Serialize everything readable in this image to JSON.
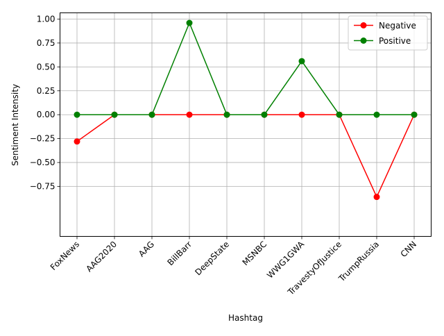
{
  "chart_data": {
    "type": "line",
    "xlabel": "Hashtag",
    "ylabel": "Sentiment Intensity",
    "categories": [
      "FoxNews",
      "AAG2020",
      "AAG",
      "BillBarr",
      "DeepState",
      "MSNBC",
      "WWG1GWA",
      "TravestyOfJustice",
      "TrumpRussia",
      "CNN"
    ],
    "series": [
      {
        "name": "Negative",
        "color": "#ff0000",
        "values": [
          -0.28,
          0.0,
          0.0,
          0.0,
          0.0,
          0.0,
          0.0,
          0.0,
          -0.86,
          0.0
        ]
      },
      {
        "name": "Positive",
        "color": "#008000",
        "values": [
          0.0,
          0.0,
          0.0,
          0.96,
          0.0,
          0.0,
          0.56,
          0.0,
          0.0,
          0.0
        ]
      }
    ],
    "ylim": [
      -0.94,
      1.05
    ],
    "yticks": [
      -0.75,
      -0.5,
      -0.25,
      0.0,
      0.25,
      0.5,
      0.75,
      1.0
    ],
    "ytick_labels": [
      "−0.75",
      "−0.50",
      "−0.25",
      "0.00",
      "0.25",
      "0.50",
      "0.75",
      "1.00"
    ],
    "grid": true,
    "legend_position": "top-right"
  }
}
